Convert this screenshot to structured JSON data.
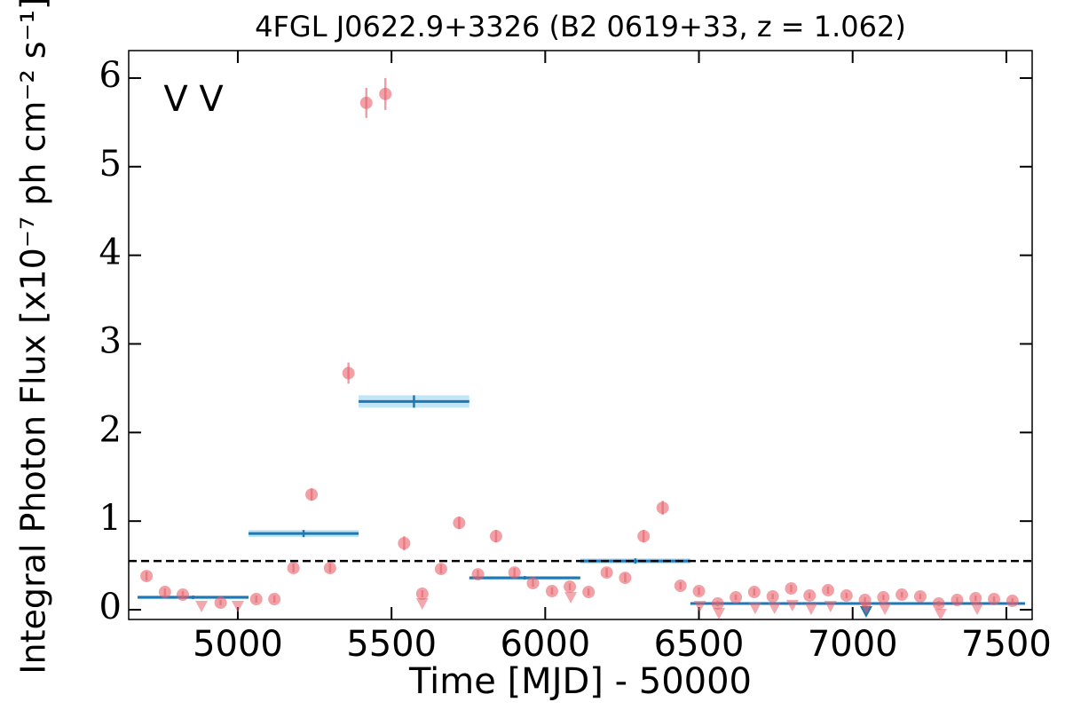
{
  "chart_data": {
    "type": "scatter",
    "title": "4FGL J0622.9+3326 (B2 0619+33, z = 1.062)",
    "xlabel": "Time [MJD] - 50000",
    "ylabel": "Integral Photon Flux [x10⁻⁷ ph cm⁻² s⁻¹]",
    "xlim": [
      4645,
      7584
    ],
    "ylim": [
      -0.11,
      6.31
    ],
    "xticks": [
      5000,
      5500,
      6000,
      6500,
      7000,
      7500
    ],
    "yticks": [
      0,
      1,
      2,
      3,
      4,
      5,
      6
    ],
    "mean_flux": 0.55,
    "series": [
      {
        "name": "V",
        "color": "#1f77b4",
        "x": [
          4674,
          5035,
          5393,
          5753,
          6114,
          6472,
          6836,
          7200
        ],
        "x_end": [
          5035,
          5393,
          5753,
          6114,
          6472,
          6836,
          7200,
          7561
        ],
        "values": [
          0.14,
          0.86,
          2.35,
          0.36,
          0.55,
          0.07,
          0.07,
          0.07
        ],
        "errors": [
          0.02,
          0.04,
          0.07,
          0.02,
          0.03,
          0.01,
          0.01,
          0.01
        ]
      },
      {
        "name": "V",
        "color": "#e8606a",
        "x": [
          4703,
          4763,
          4821,
          4944,
          5060,
          5119,
          5181,
          5240,
          5300,
          5360,
          5418,
          5480,
          5541,
          5600,
          5661,
          5720,
          5781,
          5840,
          5900,
          5960,
          6022,
          6080,
          6141,
          6200,
          6260,
          6320,
          6382,
          6440,
          6500,
          6561,
          6620,
          6680,
          6740,
          6800,
          6860,
          6920,
          6980,
          7040,
          7100,
          7160,
          7220,
          7280,
          7340,
          7400,
          7460,
          7520
        ],
        "values": [
          0.38,
          0.2,
          0.17,
          0.08,
          0.12,
          0.12,
          0.47,
          1.3,
          0.47,
          2.67,
          5.72,
          5.82,
          0.75,
          0.18,
          0.46,
          0.98,
          0.4,
          0.83,
          0.42,
          0.3,
          0.21,
          0.26,
          0.2,
          0.42,
          0.36,
          0.83,
          1.15,
          0.27,
          0.21,
          0.07,
          0.14,
          0.2,
          0.15,
          0.24,
          0.16,
          0.22,
          0.16,
          0.11,
          0.14,
          0.17,
          0.15,
          0.07,
          0.11,
          0.13,
          0.12,
          0.1
        ],
        "errors": [
          0.05,
          0.04,
          0.04,
          0.03,
          0.04,
          0.04,
          0.05,
          0.07,
          0.05,
          0.12,
          0.17,
          0.18,
          0.08,
          0.04,
          0.05,
          0.07,
          0.05,
          0.07,
          0.05,
          0.04,
          0.04,
          0.04,
          0.04,
          0.05,
          0.05,
          0.07,
          0.08,
          0.04,
          0.04,
          0.03,
          0.03,
          0.04,
          0.03,
          0.04,
          0.03,
          0.04,
          0.03,
          0.03,
          0.03,
          0.03,
          0.03,
          0.03,
          0.03,
          0.03,
          0.03,
          0.03
        ]
      }
    ],
    "upper_limits": [
      {
        "color": "#1f77b4",
        "x": [
          7044
        ],
        "values": [
          -0.02
        ]
      },
      {
        "color": "#e8606a",
        "x": [
          4882,
          5000,
          5600,
          6083,
          6503,
          6565,
          6683,
          6746,
          6804,
          6865,
          6928,
          7044,
          7105,
          7286,
          7405
        ],
        "values": [
          0.04,
          0.04,
          0.07,
          0.14,
          0.04,
          -0.04,
          0.02,
          0.02,
          0.05,
          0.01,
          0.04,
          0.02,
          0.01,
          -0.05,
          0.01
        ]
      }
    ]
  }
}
